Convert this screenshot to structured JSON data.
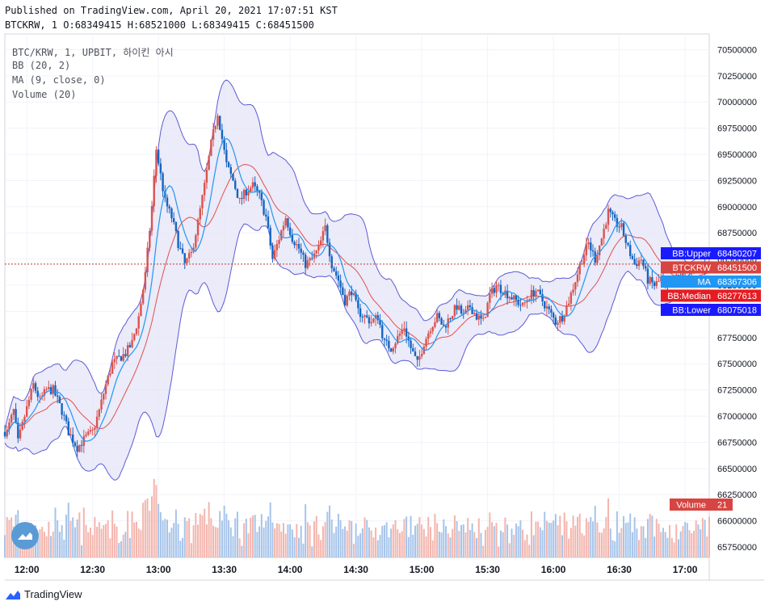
{
  "header": {
    "published": "Published on TradingView.com, April 20, 2021 17:07:51 KST",
    "ohlc": "BTCKRW, 1 O:68349415 H:68521000 L:68349415 C:68451500"
  },
  "legend": {
    "symbol": "BTC/KRW, 1, UPBIT, 하이킨 아시",
    "bb": "BB (20, 2)",
    "ma": "MA (9, close, 0)",
    "volume": "Volume (20)"
  },
  "brand": {
    "name": "TradingView"
  },
  "colors": {
    "up": "#d9534f",
    "down": "#1565c0",
    "bb_band": "#5b5bd6",
    "bb_fill": "#e6e6f7",
    "median": "#e05050",
    "ma": "#2196f3",
    "vol_up": "#f3b5ad",
    "vol_down": "#a6c4ea",
    "last_price_line": "#c0392b"
  },
  "chart_data": {
    "type": "candlestick",
    "ylim": [
      65650000,
      70650000
    ],
    "y_ticks": [
      65750000,
      66000000,
      66250000,
      66500000,
      66750000,
      67000000,
      67250000,
      67500000,
      67750000,
      68000000,
      68250000,
      68500000,
      68750000,
      69000000,
      69250000,
      69500000,
      69750000,
      70000000,
      70250000,
      70500000
    ],
    "x_ticks": [
      "12:00",
      "12:30",
      "13:00",
      "13:30",
      "14:00",
      "14:30",
      "15:00",
      "15:30",
      "16:00",
      "16:30",
      "17:00"
    ],
    "x_tick_minutes": [
      710,
      740,
      770,
      800,
      830,
      860,
      890,
      920,
      950,
      980,
      1010
    ],
    "time_range_minutes": [
      700,
      1021
    ],
    "close_path": [
      [
        701,
        66850000
      ],
      [
        704,
        67050000
      ],
      [
        706,
        66750000
      ],
      [
        709,
        67000000
      ],
      [
        713,
        67300000
      ],
      [
        716,
        67150000
      ],
      [
        719,
        67250000
      ],
      [
        722,
        67250000
      ],
      [
        726,
        67050000
      ],
      [
        729,
        66850000
      ],
      [
        733,
        66700000
      ],
      [
        737,
        66800000
      ],
      [
        740,
        66850000
      ],
      [
        743,
        67050000
      ],
      [
        746,
        67300000
      ],
      [
        749,
        67500000
      ],
      [
        752,
        67550000
      ],
      [
        755,
        67600000
      ],
      [
        758,
        67700000
      ],
      [
        761,
        67950000
      ],
      [
        764,
        68350000
      ],
      [
        767,
        69000000
      ],
      [
        769,
        69550000
      ],
      [
        771,
        69300000
      ],
      [
        773,
        69050000
      ],
      [
        776,
        68900000
      ],
      [
        779,
        68650000
      ],
      [
        782,
        68450000
      ],
      [
        785,
        68550000
      ],
      [
        788,
        68850000
      ],
      [
        791,
        69200000
      ],
      [
        794,
        69600000
      ],
      [
        797,
        69900000
      ],
      [
        799,
        69650000
      ],
      [
        801,
        69400000
      ],
      [
        804,
        69250000
      ],
      [
        807,
        69050000
      ],
      [
        810,
        69150000
      ],
      [
        813,
        69200000
      ],
      [
        816,
        69100000
      ],
      [
        819,
        68900000
      ],
      [
        822,
        68500000
      ],
      [
        825,
        68700000
      ],
      [
        828,
        68900000
      ],
      [
        831,
        68700000
      ],
      [
        834,
        68600000
      ],
      [
        837,
        68450000
      ],
      [
        840,
        68500000
      ],
      [
        843,
        68600000
      ],
      [
        846,
        68800000
      ],
      [
        849,
        68450000
      ],
      [
        852,
        68300000
      ],
      [
        855,
        68100000
      ],
      [
        858,
        68200000
      ],
      [
        861,
        68000000
      ],
      [
        864,
        67950000
      ],
      [
        867,
        67900000
      ],
      [
        870,
        67950000
      ],
      [
        873,
        67700000
      ],
      [
        876,
        67650000
      ],
      [
        879,
        67750000
      ],
      [
        882,
        67850000
      ],
      [
        885,
        67650000
      ],
      [
        888,
        67500000
      ],
      [
        891,
        67700000
      ],
      [
        894,
        67850000
      ],
      [
        897,
        67950000
      ],
      [
        900,
        67850000
      ],
      [
        903,
        67950000
      ],
      [
        906,
        68050000
      ],
      [
        909,
        67950000
      ],
      [
        912,
        68050000
      ],
      [
        915,
        67950000
      ],
      [
        918,
        67900000
      ],
      [
        921,
        68150000
      ],
      [
        924,
        68250000
      ],
      [
        927,
        68200000
      ],
      [
        930,
        68150000
      ],
      [
        933,
        68100000
      ],
      [
        936,
        68050000
      ],
      [
        939,
        68150000
      ],
      [
        942,
        68200000
      ],
      [
        945,
        68100000
      ],
      [
        948,
        68000000
      ],
      [
        951,
        67900000
      ],
      [
        954,
        67950000
      ],
      [
        957,
        68100000
      ],
      [
        960,
        68300000
      ],
      [
        963,
        68500000
      ],
      [
        966,
        68650000
      ],
      [
        969,
        68500000
      ],
      [
        972,
        68700000
      ],
      [
        975,
        68950000
      ],
      [
        978,
        68850000
      ],
      [
        981,
        68800000
      ],
      [
        984,
        68600000
      ],
      [
        987,
        68450000
      ],
      [
        990,
        68500000
      ],
      [
        993,
        68300000
      ],
      [
        996,
        68250000
      ],
      [
        999,
        68300000
      ],
      [
        1002,
        68200000
      ],
      [
        1005,
        68300000
      ],
      [
        1008,
        68350000
      ],
      [
        1011,
        68400000
      ],
      [
        1014,
        68380000
      ],
      [
        1017,
        68420000
      ],
      [
        1020,
        68451500
      ]
    ],
    "last_price": 68451500,
    "labels": [
      {
        "text": "BB:Upper",
        "value": "68480207",
        "price": 68480207,
        "color": "#1a1aff"
      },
      {
        "text": "BTCKRW",
        "value": "68451500",
        "price": 68451500,
        "color": "#d64541"
      },
      {
        "text": "MA",
        "value": "68367306",
        "price": 68367306,
        "color": "#2196f3"
      },
      {
        "text": "BB:Median",
        "value": "68277613",
        "price": 68277613,
        "color": "#e51c23"
      },
      {
        "text": "BB:Lower",
        "value": "68075018",
        "price": 68075018,
        "color": "#1a1aff"
      }
    ],
    "volume_label": {
      "text": "Volume",
      "value": "21"
    }
  }
}
